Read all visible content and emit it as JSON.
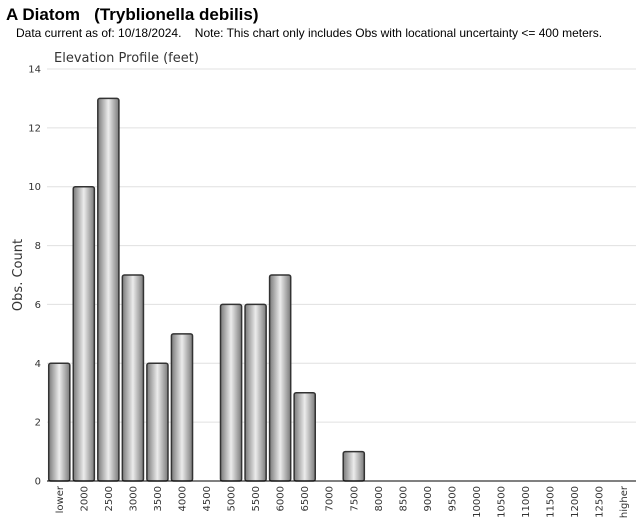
{
  "header": {
    "title": "A Diatom   (Tryblionella debilis)",
    "subtitle": "Data current as of: 10/18/2024.    Note: This chart only includes Obs with locational uncertainty <= 400 meters."
  },
  "colors": {
    "bar_fill_dark": "#7a7a7a",
    "bar_fill_light": "#ececec",
    "bar_stroke": "#333333",
    "grid": "#e0e0e0",
    "axis": "#000000"
  },
  "chart_data": {
    "type": "bar",
    "title": "Elevation Profile (feet)",
    "xlabel": "",
    "ylabel": "Obs. Count",
    "ylim": [
      0,
      14
    ],
    "yticks": [
      0,
      2,
      4,
      6,
      8,
      10,
      12,
      14
    ],
    "grid": true,
    "categories": [
      "lower",
      "2000",
      "2500",
      "3000",
      "3500",
      "4000",
      "4500",
      "5000",
      "5500",
      "6000",
      "6500",
      "7000",
      "7500",
      "8000",
      "8500",
      "9000",
      "9500",
      "10000",
      "10500",
      "11000",
      "11500",
      "12000",
      "12500",
      "higher"
    ],
    "values": [
      4,
      10,
      13,
      7,
      4,
      5,
      0,
      6,
      6,
      7,
      3,
      0,
      1,
      0,
      0,
      0,
      0,
      0,
      0,
      0,
      0,
      0,
      0,
      0
    ]
  }
}
